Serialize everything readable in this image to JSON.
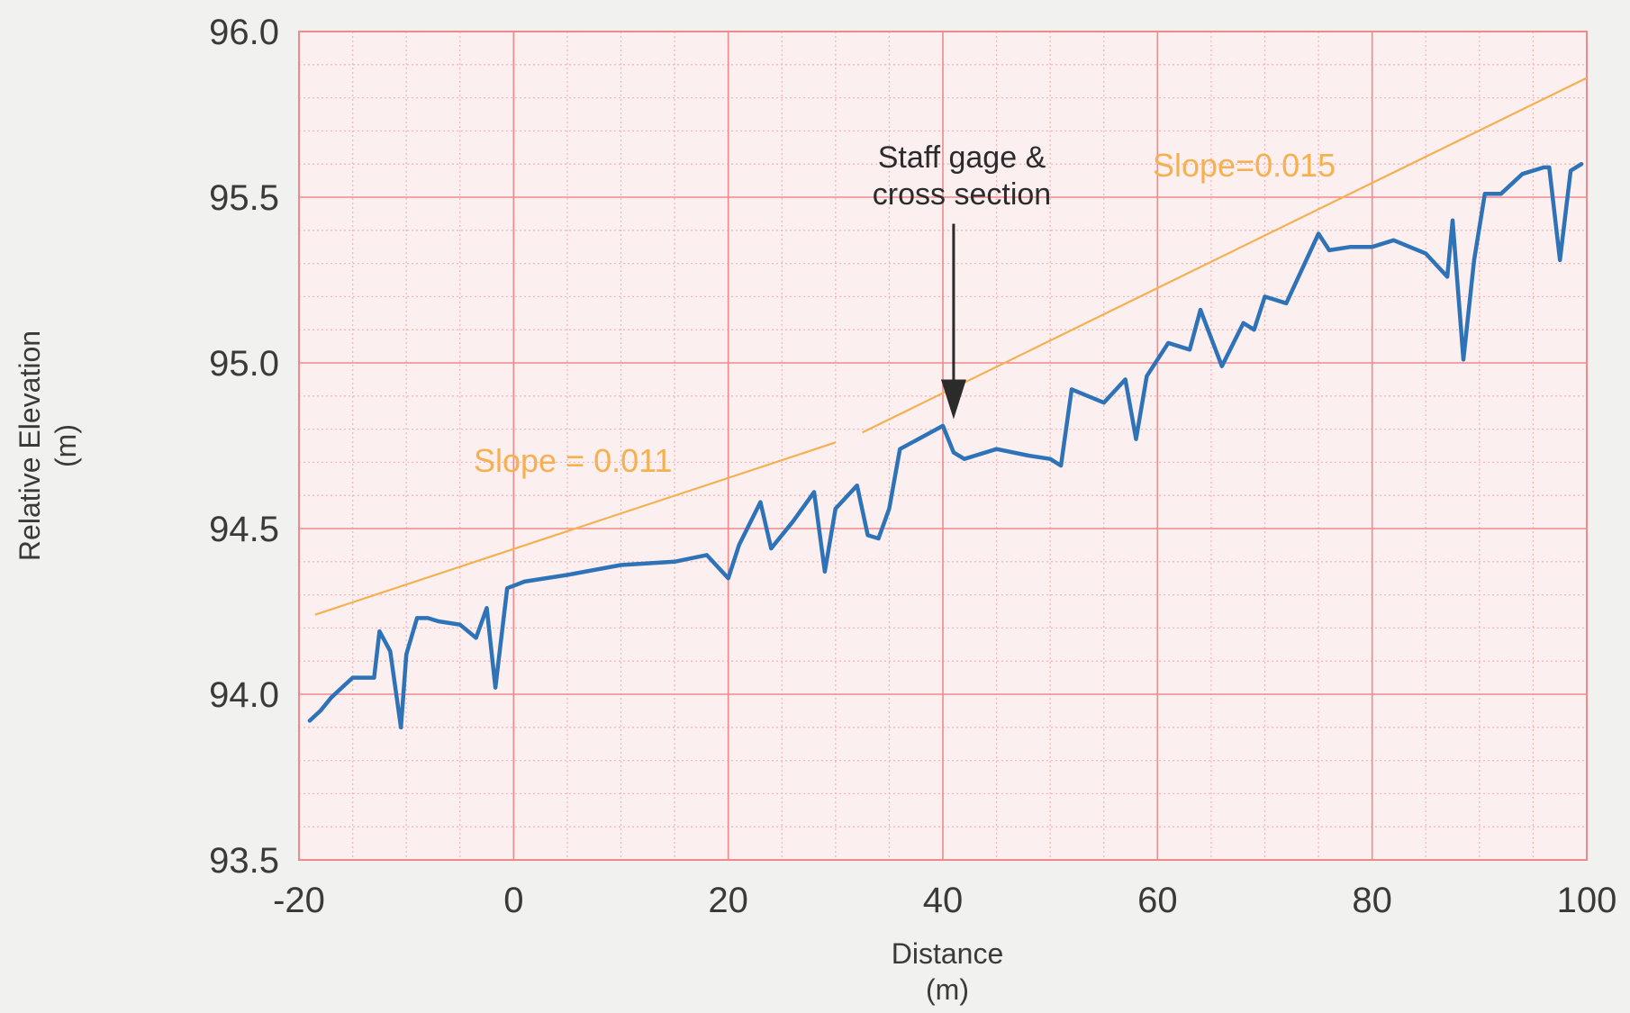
{
  "chart_data": {
    "type": "line",
    "title": "",
    "xlabel": "Distance",
    "xlabel_unit": "(m)",
    "ylabel": "Relative Elevation",
    "ylabel_unit": "(m)",
    "xlim": [
      -20,
      100
    ],
    "ylim": [
      93.5,
      96.0
    ],
    "x_ticks": [
      -20,
      0,
      20,
      40,
      60,
      80,
      100
    ],
    "x_tick_labels": [
      "-20",
      "0",
      "20",
      "40",
      "60",
      "80",
      "100"
    ],
    "y_ticks": [
      93.5,
      94.0,
      94.5,
      95.0,
      95.5,
      96.0
    ],
    "y_tick_labels": [
      "93.5",
      "94.0",
      "94.5",
      "95.0",
      "95.5",
      "96.0"
    ],
    "grid": true,
    "colors": {
      "grid_major": "#f08a8a",
      "grid_minor": "#f6b8b8",
      "plot_bg": "#fbeff0",
      "profile": "#2e72b8",
      "slope_lines": "#f5b151",
      "arrow": "#2b2b2b"
    },
    "series": [
      {
        "x": [
          -19,
          -18,
          -17,
          -16,
          -15,
          -14,
          -13,
          -12.5,
          -11.5,
          -10.5,
          -10,
          -9,
          -8,
          -7,
          -5,
          -3.5,
          -2.5,
          -1.7,
          -0.6,
          0.2,
          1,
          5,
          10,
          15,
          18,
          20,
          21,
          23,
          24,
          26,
          28,
          29,
          30,
          32,
          33,
          34,
          35,
          36,
          40,
          41,
          42,
          43,
          45,
          48,
          50,
          51,
          52,
          55,
          57,
          58,
          59,
          61,
          63,
          64,
          66,
          68,
          69,
          70,
          72,
          75,
          76,
          78,
          80,
          82,
          85,
          87,
          87.5,
          88.5,
          89.5,
          90.5,
          92,
          94,
          96,
          96.5,
          97.5,
          98.5,
          99.5
        ],
        "y": [
          93.92,
          93.95,
          93.99,
          94.02,
          94.05,
          94.05,
          94.05,
          94.19,
          94.13,
          93.9,
          94.12,
          94.23,
          94.23,
          94.22,
          94.21,
          94.17,
          94.26,
          94.02,
          94.32,
          94.33,
          94.34,
          94.36,
          94.39,
          94.4,
          94.42,
          94.35,
          94.45,
          94.58,
          94.44,
          94.52,
          94.61,
          94.37,
          94.56,
          94.63,
          94.48,
          94.47,
          94.56,
          94.74,
          94.81,
          94.73,
          94.71,
          94.72,
          94.74,
          94.72,
          94.71,
          94.69,
          94.92,
          94.88,
          94.95,
          94.77,
          94.96,
          95.06,
          95.04,
          95.16,
          94.99,
          95.12,
          95.1,
          95.2,
          95.18,
          95.39,
          95.34,
          95.35,
          95.35,
          95.37,
          95.33,
          95.26,
          95.43,
          95.01,
          95.31,
          95.51,
          95.51,
          95.57,
          95.59,
          95.59,
          95.31,
          95.58,
          95.6
        ]
      }
    ],
    "slope_lines": [
      {
        "label": "Slope = 0.011",
        "x": [
          -18.5,
          30
        ],
        "y": [
          94.24,
          94.76
        ]
      },
      {
        "label": "Slope=0.015",
        "x": [
          32.5,
          100
        ],
        "y": [
          94.79,
          95.86
        ]
      }
    ],
    "annotations": [
      {
        "text_lines": [
          "Staff gage &",
          "cross section"
        ],
        "arrow_x": 41,
        "arrow_y_from": 95.42,
        "arrow_y_to": 94.83
      }
    ]
  }
}
